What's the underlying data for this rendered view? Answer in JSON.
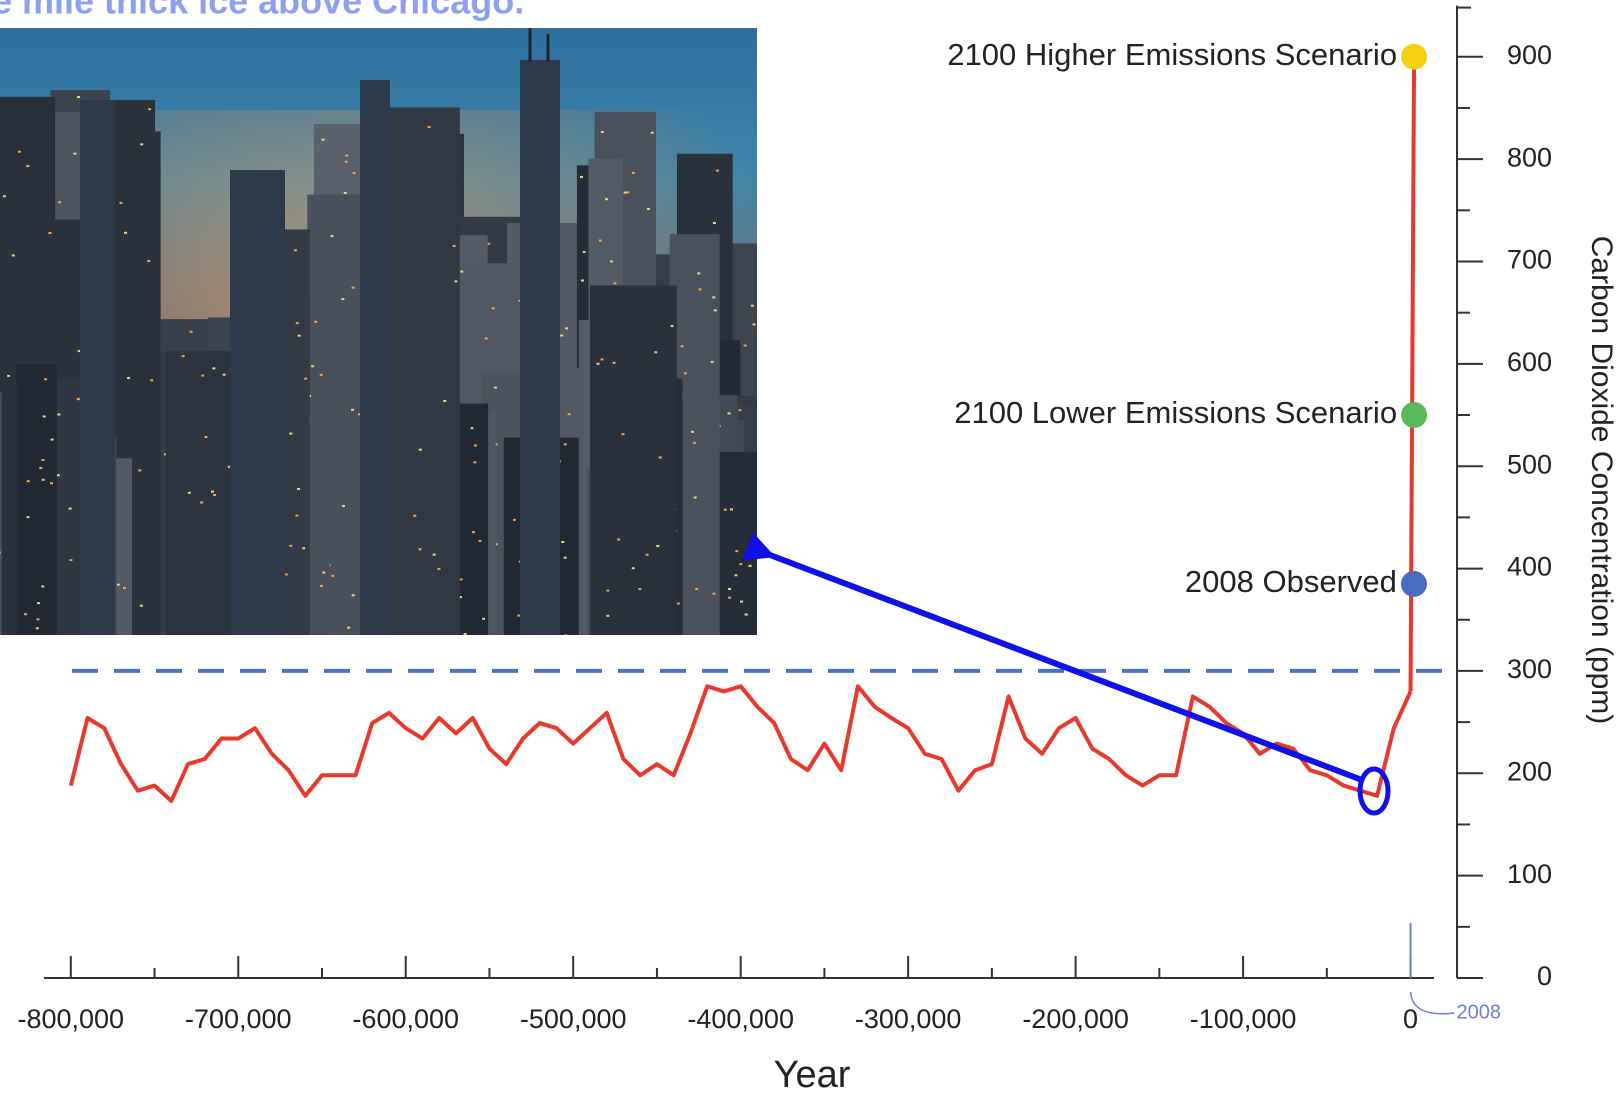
{
  "chart_data": {
    "type": "line",
    "title": "e mile thick ice above Chicago.",
    "xlabel": "Year",
    "ylabel": "Carbon Dioxide Concentration (ppm)",
    "annotation": "2008",
    "color": "#e8392c",
    "x": [
      -800000,
      -790000,
      -780000,
      -770000,
      -760000,
      -750000,
      -740000,
      -730000,
      -720000,
      -710000,
      -700000,
      -690000,
      -680000,
      -670000,
      -660000,
      -650000,
      -640000,
      -630000,
      -620000,
      -610000,
      -600000,
      -590000,
      -580000,
      -570000,
      -560000,
      -550000,
      -540000,
      -530000,
      -520000,
      -510000,
      -500000,
      -490000,
      -480000,
      -470000,
      -460000,
      -450000,
      -440000,
      -430000,
      -420000,
      -410000,
      -400000,
      -390000,
      -380000,
      -370000,
      -360000,
      -350000,
      -340000,
      -330000,
      -320000,
      -310000,
      -300000,
      -290000,
      -280000,
      -270000,
      -260000,
      -250000,
      -240000,
      -230000,
      -220000,
      -210000,
      -200000,
      -190000,
      -180000,
      -170000,
      -160000,
      -150000,
      -140000,
      -130000,
      -120000,
      -110000,
      -100000,
      -90000,
      -80000,
      -70000,
      -60000,
      -50000,
      -40000,
      -30000,
      -20000,
      -10000,
      0
    ],
    "values": [
      188,
      254,
      244,
      209,
      183,
      188,
      173,
      209,
      214,
      234,
      234,
      244,
      219,
      203,
      178,
      198,
      198,
      198,
      249,
      259,
      244,
      234,
      254,
      239,
      254,
      224,
      209,
      234,
      249,
      244,
      229,
      244,
      259,
      214,
      198,
      209,
      198,
      239,
      285,
      280,
      285,
      265,
      249,
      214,
      203,
      229,
      203,
      285,
      265,
      254,
      244,
      219,
      214,
      183,
      203,
      209,
      275,
      234,
      219,
      244,
      254,
      224,
      214,
      198,
      188,
      198,
      198,
      275,
      265,
      249,
      239,
      219,
      229,
      224,
      203,
      198,
      188,
      183,
      178,
      244,
      280
    ],
    "points": [
      {
        "label": "2100 Higher Emissions Scenario",
        "x": 2100,
        "y": 900,
        "color": "#f5cf10"
      },
      {
        "label": "2100 Lower Emissions Scenario",
        "x": 2100,
        "y": 550,
        "color": "#5cb85c"
      },
      {
        "label": "2008 Observed",
        "x": 2008,
        "y": 385,
        "color": "#4a6cc0"
      }
    ],
    "reference_line": {
      "y": 300,
      "color": "#4a72c4"
    },
    "xlim": [
      -816000,
      14000
    ],
    "ylim": [
      0,
      950
    ],
    "xticks": [
      {
        "value": -800000,
        "label": "-800,000"
      },
      {
        "value": -700000,
        "label": "-700,000"
      },
      {
        "value": -600000,
        "label": "-600,000"
      },
      {
        "value": -500000,
        "label": "-500,000"
      },
      {
        "value": -400000,
        "label": "-400,000"
      },
      {
        "value": -300000,
        "label": "-300,000"
      },
      {
        "value": -200000,
        "label": "-200,000"
      },
      {
        "value": -100000,
        "label": "-100,000"
      },
      0
    ],
    "xminorticks": [
      -750000,
      -650000,
      -550000,
      -450000,
      -350000,
      -250000,
      -150000,
      -50000
    ],
    "yticks": [
      0,
      100,
      200,
      300,
      400,
      500,
      600,
      700,
      800,
      900
    ],
    "yminorticks": [
      50,
      150,
      250,
      350,
      450,
      550,
      650,
      750,
      850
    ]
  }
}
